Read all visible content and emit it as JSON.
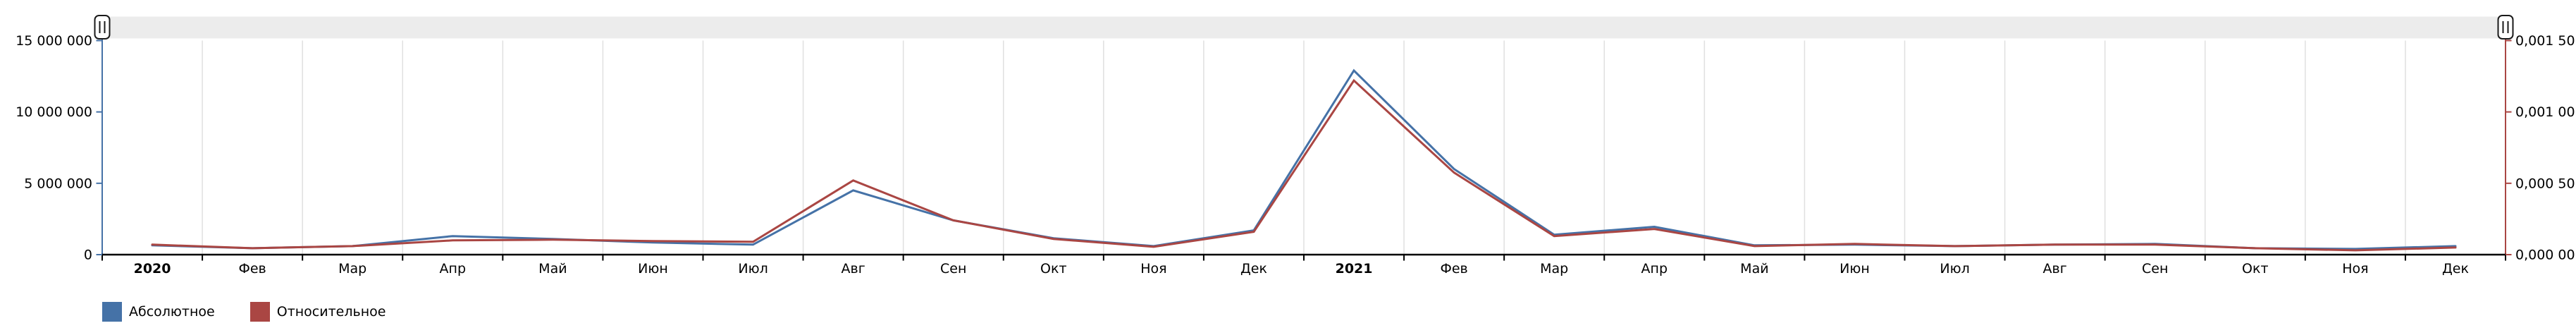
{
  "chart_data": {
    "type": "line",
    "categories": [
      "2020",
      "Фев",
      "Мар",
      "Апр",
      "Май",
      "Июн",
      "Июл",
      "Авг",
      "Сен",
      "Окт",
      "Ноя",
      "Дек",
      "2021",
      "Фев",
      "Мар",
      "Апр",
      "Май",
      "Июн",
      "Июл",
      "Авг",
      "Сен",
      "Окт",
      "Ноя",
      "Дек"
    ],
    "bold_category_labels": [
      "2020",
      "2021"
    ],
    "series": [
      {
        "name": "Абсолютное",
        "color": "#4572A7",
        "axis": "left",
        "values": [
          650000,
          450000,
          600000,
          1300000,
          1100000,
          850000,
          700000,
          4500000,
          2400000,
          1150000,
          600000,
          1700000,
          12900000,
          6000000,
          1400000,
          1950000,
          650000,
          700000,
          600000,
          700000,
          750000,
          450000,
          400000,
          600000
        ]
      },
      {
        "name": "Относительное",
        "color": "#AA4643",
        "axis": "right",
        "values": [
          7e-05,
          4.5e-05,
          6e-05,
          0.0001,
          0.000105,
          9.5e-05,
          9e-05,
          0.00052,
          0.00024,
          0.00011,
          5.5e-05,
          0.00016,
          0.00122,
          0.000575,
          0.00013,
          0.00018,
          6e-05,
          7.5e-05,
          6e-05,
          7e-05,
          7e-05,
          4.5e-05,
          3e-05,
          5e-05
        ]
      }
    ],
    "left_axis": {
      "min": 0,
      "max": 15000000,
      "tick_labels": [
        "15 000 000",
        "10 000 000",
        "5 000 000",
        "0"
      ],
      "color": "#4572A7"
    },
    "right_axis": {
      "min": 0,
      "max": 0.0015,
      "tick_labels": [
        "0,001 50",
        "0,001 00",
        "0,000 50",
        "0,000 00"
      ],
      "color": "#AA4643"
    },
    "title": "",
    "xlabel": "",
    "ylabel": "",
    "grid": "vertical-only",
    "legend_position": "bottom-left"
  },
  "legend": {
    "items": [
      {
        "label": "Абсолютное",
        "color": "#4572A7"
      },
      {
        "label": "Относительное",
        "color": "#AA4643"
      }
    ]
  },
  "scrollbar": {
    "grip_glyph": "||",
    "track_color": "#ececec"
  },
  "colors": {
    "axis_text": "#000000",
    "grid": "#e0e0e0",
    "x_axis_line": "#000000",
    "grip_border": "#1a1a1a",
    "grip_fill": "#ffffff"
  }
}
